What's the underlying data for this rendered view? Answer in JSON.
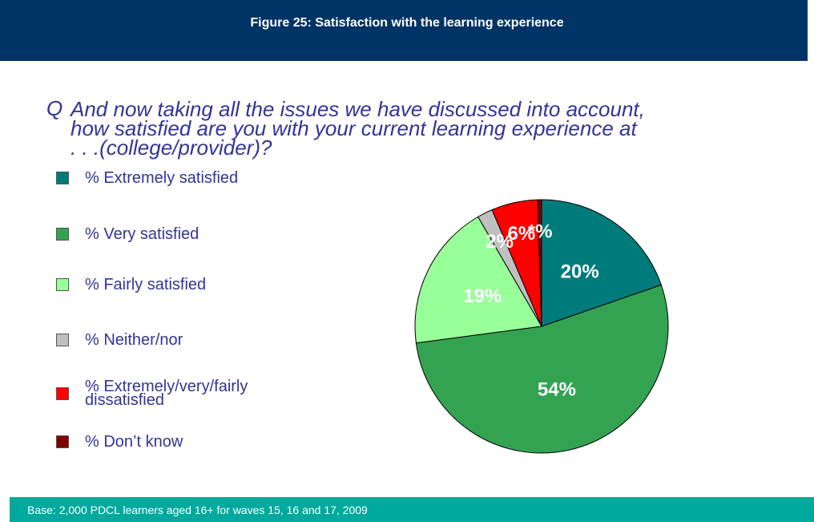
{
  "chart_data": {
    "type": "pie",
    "title": "Figure 25: Satisfaction with the learning experience",
    "question_marker": "Q",
    "question": [
      "And now taking all the issues we have discussed into account,",
      "how satisfied are you with your current learning experience at",
      ". . .(college/provider)?"
    ],
    "categories": [
      "% Extremely satisfied",
      "% Very satisfied",
      "% Fairly satisfied",
      "% Neither/nor",
      "% Extremely/very/fairly dissatisfied",
      "% Don’t know"
    ],
    "values": [
      20,
      54,
      19,
      2,
      6,
      0.5
    ],
    "value_labels": [
      "20%",
      "54%",
      "19%",
      "2%",
      "6%",
      "*%"
    ],
    "colors": [
      "#007b7b",
      "#33a352",
      "#99ff99",
      "#c0c0c0",
      "#ff0000",
      "#800000"
    ],
    "base_note": "Base: 2,000 PDCL learners aged 16+  for waves 15, 16 and 17, 2009"
  }
}
